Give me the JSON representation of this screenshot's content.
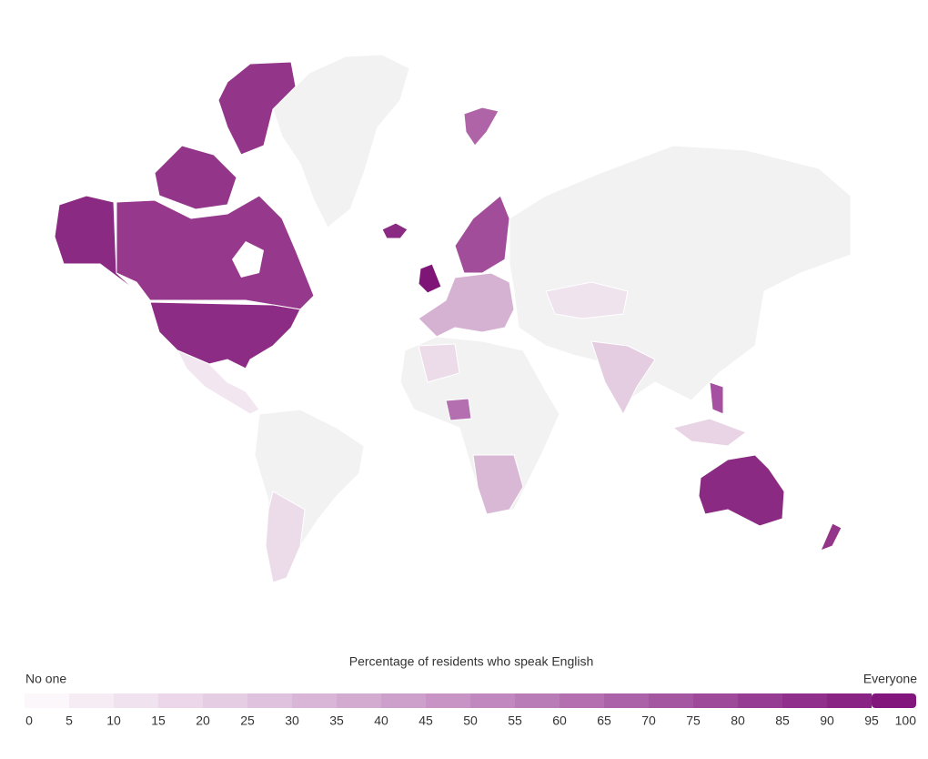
{
  "legend": {
    "title": "Percentage of residents who speak English",
    "min_label": "No one",
    "max_label": "Everyone",
    "ticks": [
      0,
      5,
      10,
      15,
      20,
      25,
      30,
      35,
      40,
      45,
      50,
      55,
      60,
      65,
      70,
      75,
      80,
      85,
      90,
      95,
      100
    ],
    "colors": [
      "#fbf7fb",
      "#f5ecf4",
      "#f0e2ef",
      "#ebd7e9",
      "#e5cde4",
      "#dfc2de",
      "#d9b6d7",
      "#d3abd1",
      "#cda0cb",
      "#c794c5",
      "#c088be",
      "#ba7cb7",
      "#b36faf",
      "#ac62a8",
      "#a556a1",
      "#9e499a",
      "#973c93",
      "#90308c",
      "#892384",
      "#82167c"
    ]
  }
}
